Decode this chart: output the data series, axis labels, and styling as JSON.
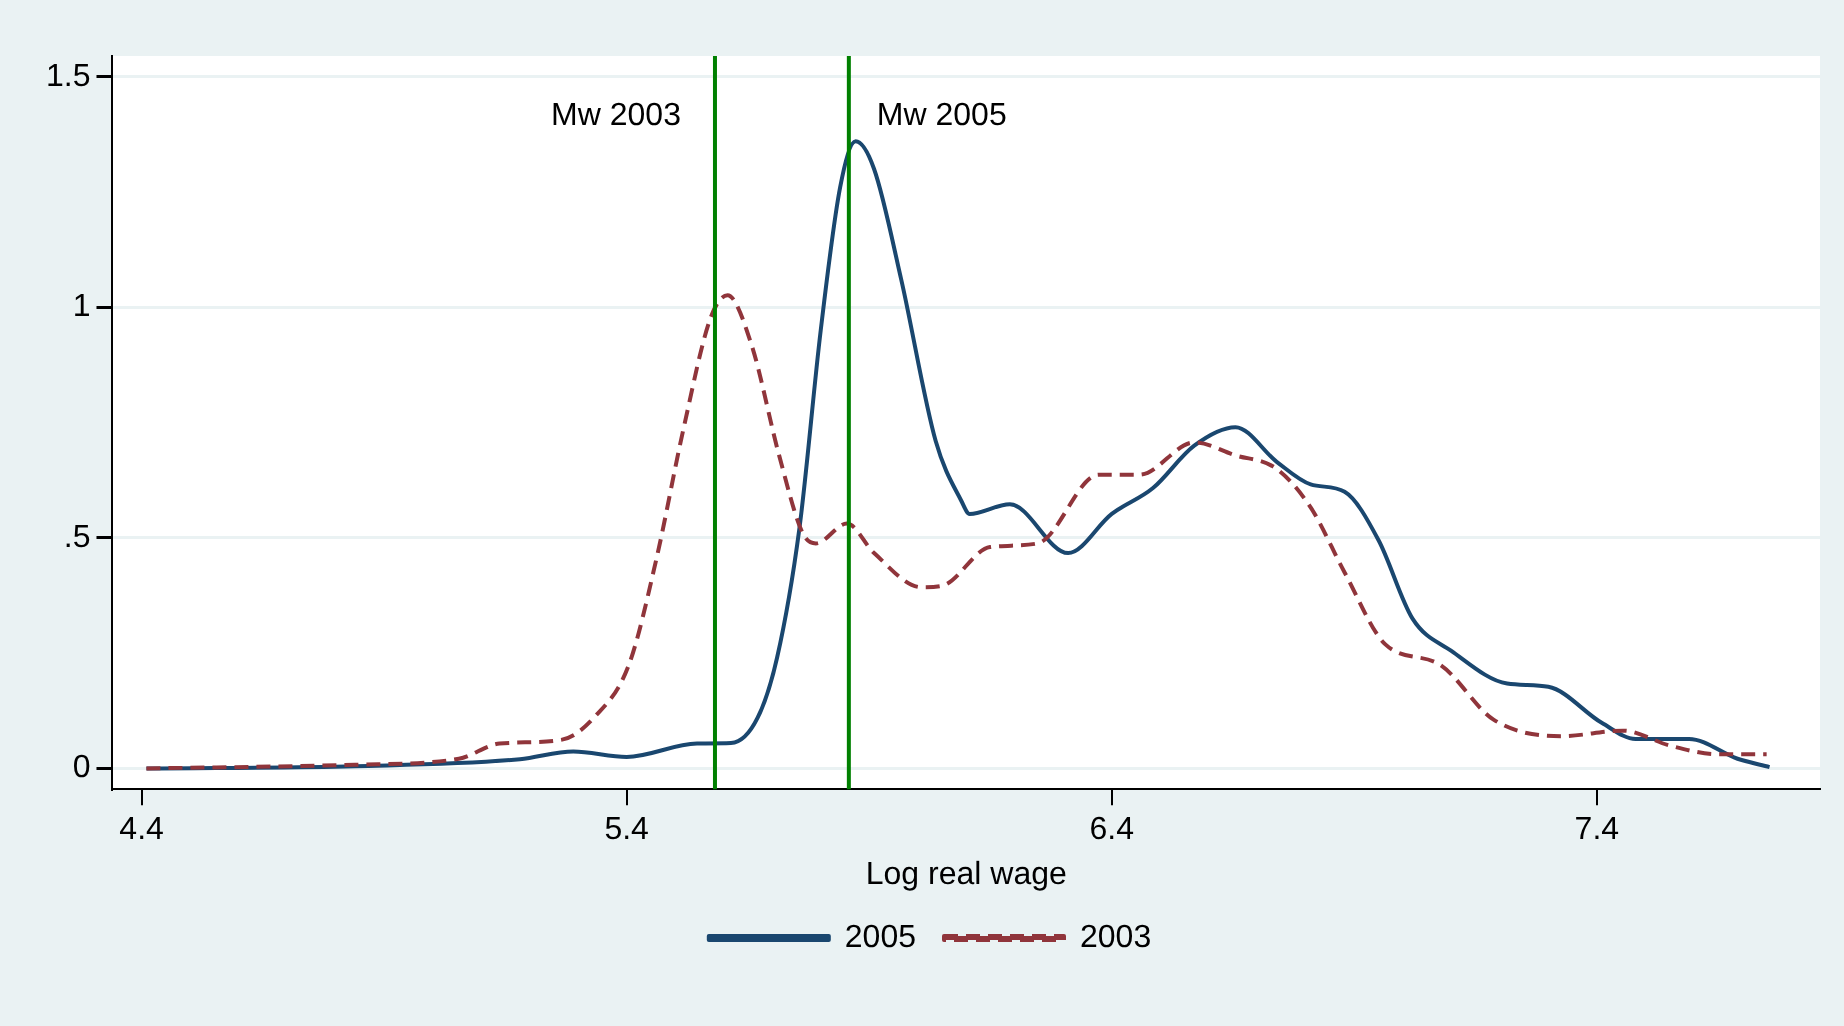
{
  "chart_data": {
    "type": "line",
    "xlabel": "Log real wage",
    "xlim": [
      4.34,
      7.86
    ],
    "xticks": [
      4.4,
      5.4,
      6.4,
      7.4
    ],
    "ylim": [
      -0.045,
      1.545
    ],
    "yticks": [
      0,
      {
        "value": 0.5,
        "label": ".5"
      },
      1,
      1.5
    ],
    "grid": "y",
    "legend": "bottom",
    "marker": "none",
    "series": [
      {
        "name": "2005",
        "color": "#1a476f",
        "line_style": "solid",
        "x": [
          4.41,
          4.84,
          5.18,
          5.29,
          5.4,
          5.545,
          5.615,
          5.67,
          5.71,
          5.756,
          5.8,
          5.84,
          5.872,
          5.91,
          5.966,
          6.037,
          6.09,
          6.107,
          6.19,
          6.31,
          6.4,
          6.485,
          6.57,
          6.655,
          6.74,
          6.81,
          6.88,
          6.95,
          7.02,
          7.1,
          7.215,
          7.3,
          7.41,
          7.48,
          7.59,
          7.69,
          7.756
        ],
        "values": [
          0,
          0.005,
          0.02,
          0.037,
          0.025,
          0.054,
          0.055,
          0.11,
          0.24,
          0.52,
          0.95,
          1.26,
          1.36,
          1.3,
          1.06,
          0.71,
          0.58,
          0.552,
          0.573,
          0.467,
          0.552,
          0.608,
          0.7,
          0.74,
          0.665,
          0.616,
          0.6,
          0.495,
          0.325,
          0.255,
          0.184,
          0.177,
          0.099,
          0.064,
          0.064,
          0.021,
          0.003
        ]
      },
      {
        "name": "2003",
        "color": "#90353b",
        "line_style": "dashed",
        "x": [
          4.41,
          4.84,
          5.054,
          5.138,
          5.265,
          5.335,
          5.405,
          5.461,
          5.517,
          5.573,
          5.608,
          5.657,
          5.714,
          5.763,
          5.79,
          5.854,
          5.91,
          6.008,
          6.05,
          6.149,
          6.247,
          6.373,
          6.457,
          6.57,
          6.655,
          6.738,
          6.81,
          6.88,
          6.964,
          7.075,
          7.187,
          7.327,
          7.454,
          7.552,
          7.65,
          7.75
        ],
        "values": [
          0,
          0.008,
          0.021,
          0.054,
          0.062,
          0.113,
          0.226,
          0.453,
          0.736,
          0.977,
          1.026,
          0.92,
          0.68,
          0.51,
          0.488,
          0.531,
          0.467,
          0.393,
          0.396,
          0.48,
          0.488,
          0.637,
          0.637,
          0.707,
          0.679,
          0.651,
          0.566,
          0.425,
          0.269,
          0.226,
          0.106,
          0.07,
          0.082,
          0.049,
          0.031,
          0.031
        ]
      }
    ],
    "ref_lines": [
      {
        "axis": "x",
        "value": 5.582,
        "label": "Mw 2003",
        "color": "#008000"
      },
      {
        "axis": "x",
        "value": 5.858,
        "label": "Mw 2005",
        "color": "#008000"
      }
    ]
  }
}
